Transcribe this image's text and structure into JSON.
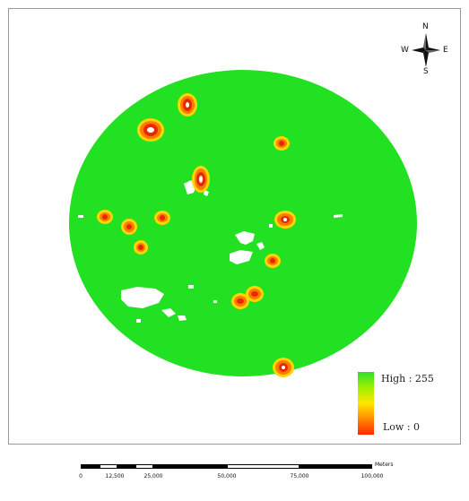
{
  "map": {
    "colors": {
      "field": "#22e022",
      "ring_outer": "#ffd400",
      "ring_mid": "#ff7a00",
      "ring_inner": "#e62a00",
      "void": "#ffffff"
    },
    "legend": {
      "high_label": "High : 255",
      "low_label": "Low : 0"
    },
    "north_arrow": {
      "n": "N",
      "e": "E",
      "s": "S",
      "w": "W"
    },
    "scale_bar": {
      "ticks": [
        "0",
        "12,500",
        "25,000",
        "50,000",
        "75,000",
        "100,000"
      ],
      "units": "Meters"
    }
  }
}
